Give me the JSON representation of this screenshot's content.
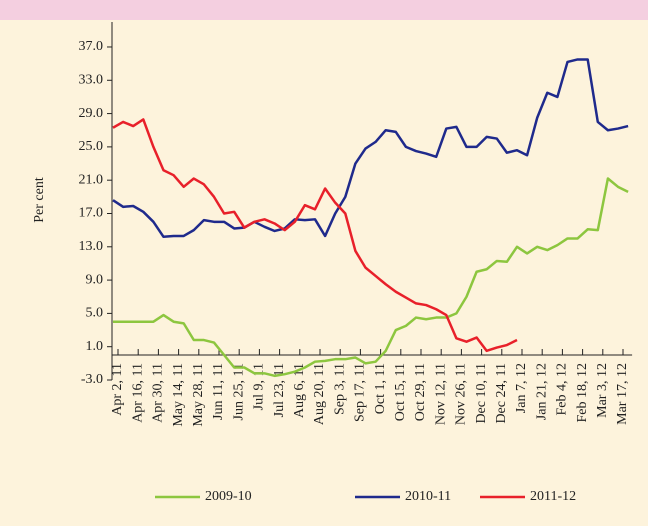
{
  "chart_data": {
    "type": "line",
    "y_label": "Per cent",
    "categories": [
      "Apr 2, 11",
      null,
      "Apr 16, 11",
      null,
      "Apr 30, 11",
      null,
      "May 14, 11",
      null,
      "May 28, 11",
      null,
      "Jun 11, 11",
      null,
      "Jun 25, 11",
      null,
      "Jul 9, 11",
      null,
      "Jul 23, 11",
      null,
      "Aug 6, 11",
      null,
      "Aug 20, 11",
      null,
      "Sep 3, 11",
      null,
      "Sep 17, 11",
      null,
      "Oct 1, 11",
      null,
      "Oct 15, 11",
      null,
      "Oct 29, 11",
      null,
      "Nov 12, 11",
      null,
      "Nov 26, 11",
      null,
      "Dec 10, 11",
      null,
      "Dec 24, 11",
      null,
      "Jan 7, 12",
      null,
      "Jan 21, 12",
      null,
      "Feb 4, 12",
      null,
      "Feb 18, 12",
      null,
      "Mar 3, 12",
      null,
      "Mar 17, 12",
      null
    ],
    "series": [
      {
        "name": "2009-10",
        "color": "#8dc63f",
        "values": [
          4.0,
          4.0,
          4.0,
          4.0,
          4.0,
          4.8,
          4.0,
          3.8,
          1.8,
          1.8,
          1.5,
          0,
          -1.5,
          -1.5,
          -2.2,
          -2.2,
          -2.5,
          -2.3,
          -2.0,
          -1.5,
          -0.8,
          -0.7,
          -0.5,
          -0.5,
          -0.3,
          -1.0,
          -0.8,
          0.5,
          3.0,
          3.5,
          4.5,
          4.3,
          4.5,
          4.5,
          5.0,
          7.0,
          10.0,
          10.3,
          11.3,
          11.2,
          13.0,
          12.2,
          13.0,
          12.6,
          13.2,
          14.0,
          14.0,
          15.1,
          15.0,
          21.2,
          20.2,
          19.6
        ]
      },
      {
        "name": "2010-11",
        "color": "#1f2a8c",
        "values": [
          18.6,
          17.8,
          17.9,
          17.2,
          16.0,
          14.2,
          14.3,
          14.3,
          15.0,
          16.2,
          16.0,
          16.0,
          15.2,
          15.3,
          16.0,
          15.4,
          14.9,
          15.2,
          16.3,
          16.2,
          16.3,
          14.3,
          17.0,
          19.0,
          23.0,
          24.8,
          25.6,
          27.0,
          26.8,
          25.0,
          24.5,
          24.2,
          23.8,
          27.2,
          27.4,
          25.0,
          25.0,
          26.2,
          26.0,
          24.3,
          24.6,
          24.0,
          28.5,
          31.5,
          31.0,
          35.2,
          35.5,
          35.5,
          28.0,
          27.0,
          27.2,
          27.5
        ]
      },
      {
        "name": "2011-12",
        "color": "#e8202a",
        "values": [
          27.3,
          28.0,
          27.5,
          28.3,
          25.0,
          22.2,
          21.6,
          20.2,
          21.2,
          20.5,
          19.0,
          17.0,
          17.2,
          15.3,
          16.0,
          16.3,
          15.8,
          15.0,
          16.0,
          18.0,
          17.5,
          20.0,
          18.3,
          17.0,
          12.5,
          10.5,
          9.5,
          8.5,
          7.6,
          6.9,
          6.2,
          6.0,
          5.5,
          4.8,
          2.0,
          1.6,
          2.1,
          0.5,
          0.9,
          1.2,
          1.8,
          null,
          null,
          null,
          null,
          null,
          null,
          null,
          null,
          null,
          null,
          null
        ]
      }
    ],
    "ylim": [
      -3,
      40
    ],
    "yticks": [
      {
        "value": -3,
        "label": "-3.0"
      },
      {
        "value": 1,
        "label": "1.0"
      },
      {
        "value": 5,
        "label": "5.0"
      },
      {
        "value": 9,
        "label": "9.0"
      },
      {
        "value": 13,
        "label": "13.0"
      },
      {
        "value": 17,
        "label": "17.0"
      },
      {
        "value": 21,
        "label": "21.0"
      },
      {
        "value": 25,
        "label": "25.0"
      },
      {
        "value": 29,
        "label": "29.0"
      },
      {
        "value": 33,
        "label": "33.0"
      },
      {
        "value": 37,
        "label": "37.0"
      }
    ],
    "legend": "bottom",
    "grid": false
  }
}
